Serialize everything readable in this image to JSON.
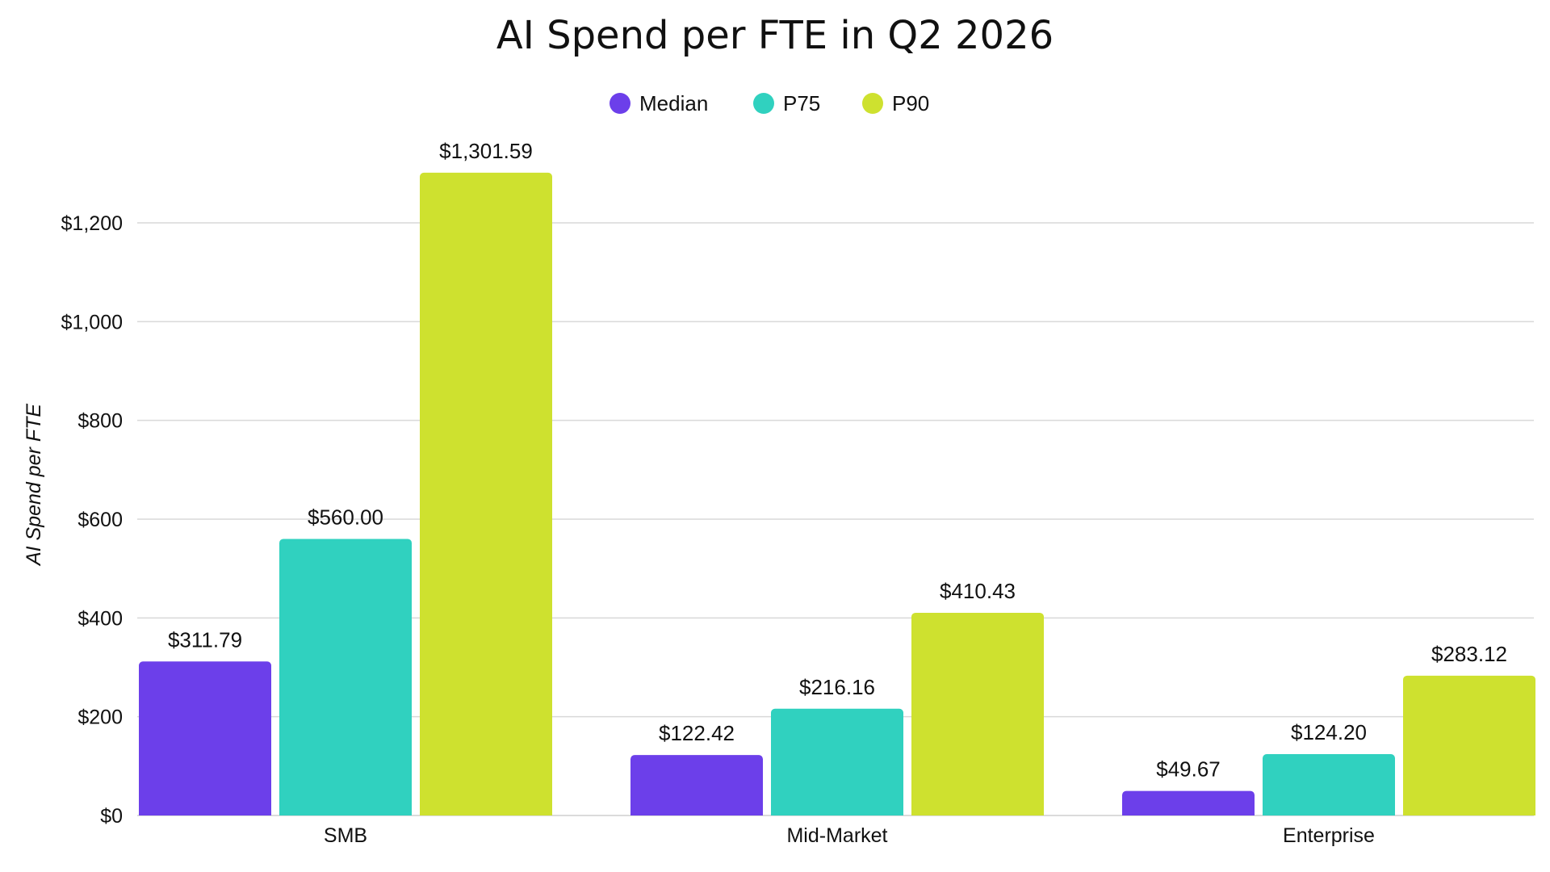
{
  "chart_data": {
    "type": "bar",
    "title": "AI Spend per FTE in Q2 2026",
    "ylabel": "AI Spend per FTE",
    "xlabel": "",
    "categories": [
      "SMB",
      "Mid-Market",
      "Enterprise"
    ],
    "ylim": [
      0,
      1300
    ],
    "yticks": [
      0,
      200,
      400,
      600,
      800,
      1000,
      1200
    ],
    "ytick_labels": [
      "$0",
      "$200",
      "$400",
      "$600",
      "$800",
      "$1,000",
      "$1,200"
    ],
    "grid": true,
    "legend_position": "top-center",
    "series": [
      {
        "name": "Median",
        "color": "#6c3fea",
        "values": [
          311.79,
          122.42,
          49.67
        ],
        "labels": [
          "$311.79",
          "$122.42",
          "$49.67"
        ]
      },
      {
        "name": "P75",
        "color": "#30d1bf",
        "values": [
          560.0,
          216.16,
          124.2
        ],
        "labels": [
          "$560.00",
          "$216.16",
          "$124.20"
        ]
      },
      {
        "name": "P90",
        "color": "#cee12f",
        "values": [
          1301.59,
          410.43,
          283.12
        ],
        "labels": [
          "$1,301.59",
          "$410.43",
          "$283.12"
        ]
      }
    ]
  }
}
